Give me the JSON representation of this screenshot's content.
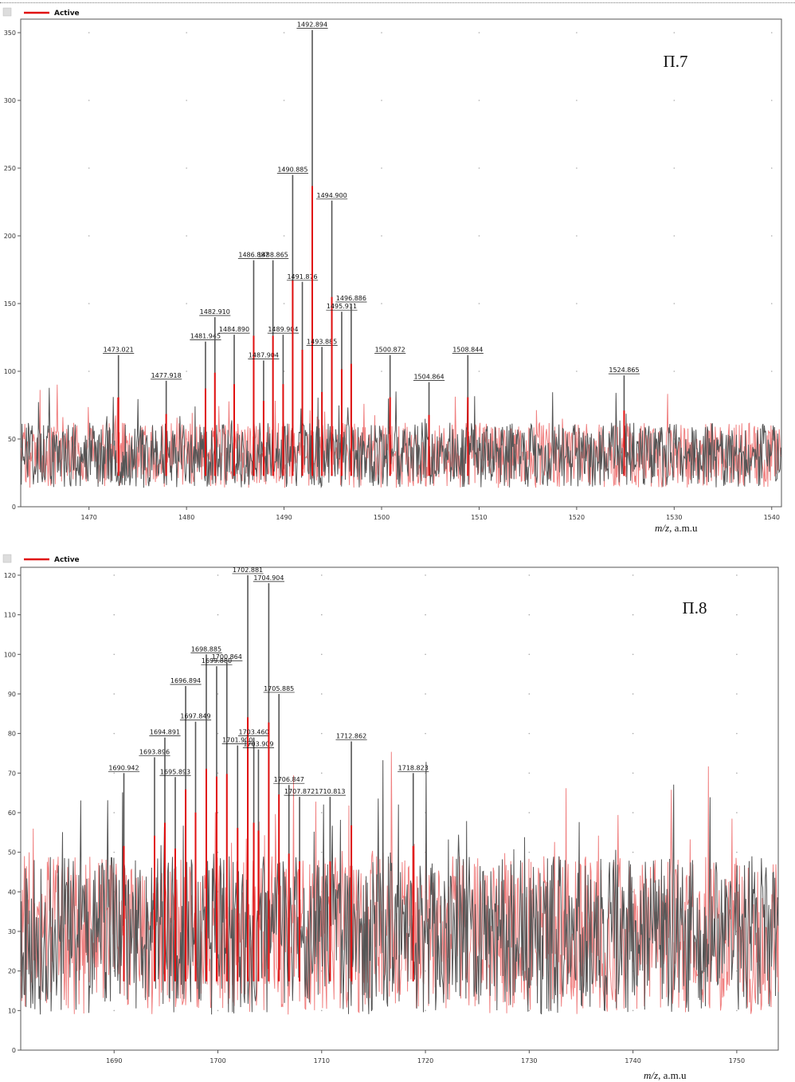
{
  "chart_data": [
    {
      "type": "line",
      "title": "",
      "panel_label": "П.7",
      "legend": "Active",
      "xlabel_italic": "m/z",
      "xlabel_rest": ", a.m.u",
      "xlim": [
        1463,
        1541
      ],
      "ylim": [
        0,
        360
      ],
      "xticks": [
        1470,
        1480,
        1490,
        1500,
        1510,
        1520,
        1530,
        1540
      ],
      "yticks": [
        0,
        50,
        100,
        150,
        200,
        250,
        300,
        350
      ],
      "colors": {
        "primary": "#555555",
        "secondary": "#e01010",
        "secondary_light": "#f08080"
      },
      "noise": {
        "base": 38,
        "amplitude": 24,
        "seed": 7
      },
      "peaks": [
        {
          "x": 1473.021,
          "y": 112,
          "label": "1473.021"
        },
        {
          "x": 1477.918,
          "y": 93,
          "label": "1477.918"
        },
        {
          "x": 1481.945,
          "y": 122,
          "label": "1481.945"
        },
        {
          "x": 1482.91,
          "y": 140,
          "label": "1482.910"
        },
        {
          "x": 1484.89,
          "y": 127,
          "label": "1484.890"
        },
        {
          "x": 1486.887,
          "y": 182,
          "label": "1486.887"
        },
        {
          "x": 1487.904,
          "y": 108,
          "label": "1487.904"
        },
        {
          "x": 1488.865,
          "y": 182,
          "label": "1488.865"
        },
        {
          "x": 1489.904,
          "y": 127,
          "label": "1489.904"
        },
        {
          "x": 1490.885,
          "y": 245,
          "label": "1490.885"
        },
        {
          "x": 1491.876,
          "y": 166,
          "label": "1491.876"
        },
        {
          "x": 1492.894,
          "y": 352,
          "label": "1492.894"
        },
        {
          "x": 1493.885,
          "y": 118,
          "label": "1493.885"
        },
        {
          "x": 1494.9,
          "y": 226,
          "label": "1494.900"
        },
        {
          "x": 1495.911,
          "y": 144,
          "label": "1495.911"
        },
        {
          "x": 1496.886,
          "y": 150,
          "label": "1496.886"
        },
        {
          "x": 1500.872,
          "y": 112,
          "label": "1500.872"
        },
        {
          "x": 1504.864,
          "y": 92,
          "label": "1504.864"
        },
        {
          "x": 1508.844,
          "y": 112,
          "label": "1508.844"
        },
        {
          "x": 1524.865,
          "y": 97,
          "label": "1524.865"
        }
      ]
    },
    {
      "type": "line",
      "title": "",
      "panel_label": "П.8",
      "legend": "Active",
      "xlabel_italic": "m/z",
      "xlabel_rest": ", a.m.u",
      "xlim": [
        1681,
        1754
      ],
      "ylim": [
        0,
        122
      ],
      "xticks": [
        1690,
        1700,
        1710,
        1720,
        1730,
        1740,
        1750
      ],
      "yticks": [
        0,
        10,
        20,
        30,
        40,
        50,
        60,
        70,
        80,
        90,
        100,
        110,
        120
      ],
      "colors": {
        "primary": "#555555",
        "secondary": "#e01010",
        "secondary_light": "#f08080"
      },
      "noise": {
        "base": 29,
        "amplitude": 20,
        "seed": 11
      },
      "peaks": [
        {
          "x": 1690.942,
          "y": 70,
          "label": "1690.942"
        },
        {
          "x": 1693.896,
          "y": 74,
          "label": "1693.896"
        },
        {
          "x": 1694.891,
          "y": 79,
          "label": "1694.891"
        },
        {
          "x": 1695.893,
          "y": 69,
          "label": "1695.893"
        },
        {
          "x": 1696.894,
          "y": 92,
          "label": "1696.894"
        },
        {
          "x": 1697.849,
          "y": 83,
          "label": "1697.849"
        },
        {
          "x": 1698.885,
          "y": 100,
          "label": "1698.885"
        },
        {
          "x": 1699.88,
          "y": 97,
          "label": "1699.880"
        },
        {
          "x": 1700.864,
          "y": 98,
          "label": "1700.864"
        },
        {
          "x": 1701.9,
          "y": 77,
          "label": "1701.900"
        },
        {
          "x": 1702.881,
          "y": 120,
          "label": "1702.881"
        },
        {
          "x": 1703.46,
          "y": 79,
          "label": "1703.460"
        },
        {
          "x": 1703.909,
          "y": 76,
          "label": "1703.909"
        },
        {
          "x": 1704.904,
          "y": 118,
          "label": "1704.904"
        },
        {
          "x": 1705.885,
          "y": 90,
          "label": "1705.885"
        },
        {
          "x": 1706.847,
          "y": 67,
          "label": "1706.847"
        },
        {
          "x": 1707.872,
          "y": 64,
          "label": "1707.872"
        },
        {
          "x": 1710.813,
          "y": 64,
          "label": "1710.813"
        },
        {
          "x": 1712.862,
          "y": 78,
          "label": "1712.862"
        },
        {
          "x": 1718.823,
          "y": 70,
          "label": "1718.823"
        }
      ]
    }
  ]
}
